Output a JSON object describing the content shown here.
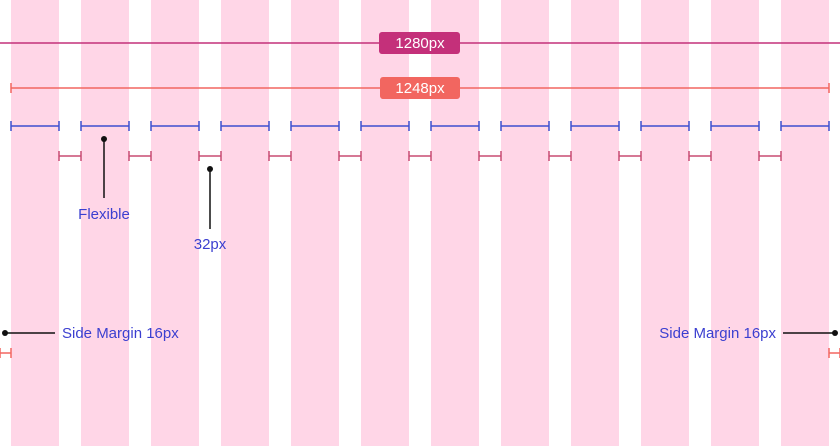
{
  "widths": {
    "full": "1280px",
    "content": "1248px"
  },
  "annotations": {
    "column": "Flexible",
    "gutter": "32px",
    "left_margin": "Side Margin 16px",
    "right_margin": "Side Margin 16px"
  }
}
